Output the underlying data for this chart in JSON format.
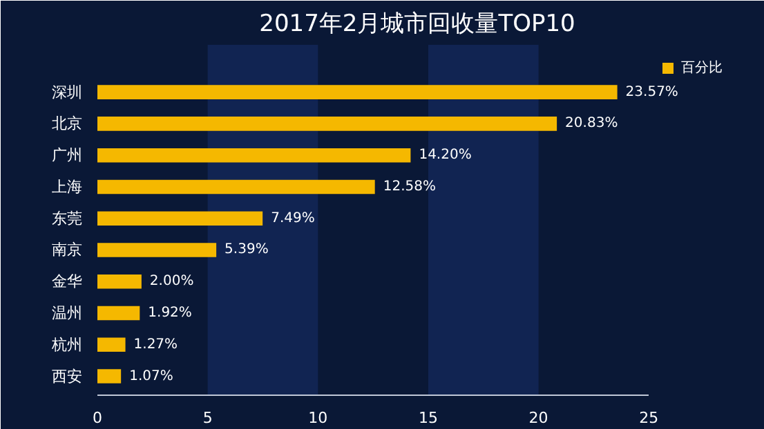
{
  "chart_data": {
    "type": "bar",
    "orientation": "horizontal",
    "title": "2017年2月城市回收量TOP10",
    "categories": [
      "深圳",
      "北京",
      "广州",
      "上海",
      "东莞",
      "南京",
      "金华",
      "温州",
      "杭州",
      "西安"
    ],
    "series": [
      {
        "name": "百分比",
        "color": "#f5b800",
        "values": [
          23.57,
          20.83,
          14.2,
          12.58,
          7.49,
          5.39,
          2.0,
          1.92,
          1.27,
          1.07
        ],
        "value_labels": [
          "23.57%",
          "20.83%",
          "14.20%",
          "12.58%",
          "7.49%",
          "5.39%",
          "2.00%",
          "1.92%",
          "1.27%",
          "1.07%"
        ]
      }
    ],
    "xlim": [
      0,
      25
    ],
    "xticks": [
      0,
      5,
      10,
      15,
      20,
      25
    ],
    "bands": [
      {
        "axis": "x",
        "from": 5,
        "to": 10,
        "color": "#13285a"
      },
      {
        "axis": "x",
        "from": 15,
        "to": 20,
        "color": "#13285a"
      }
    ],
    "legend": "top right"
  }
}
